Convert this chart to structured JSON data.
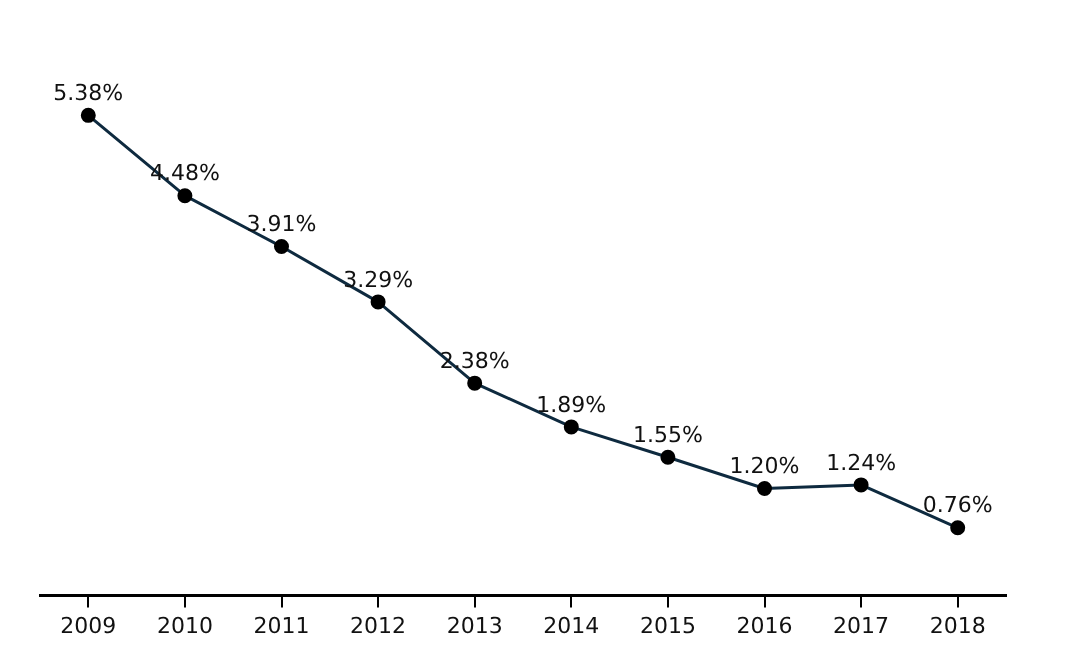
{
  "chart_data": {
    "type": "line",
    "categories": [
      "2009",
      "2010",
      "2011",
      "2012",
      "2013",
      "2014",
      "2015",
      "2016",
      "2017",
      "2018"
    ],
    "values": [
      5.38,
      4.48,
      3.91,
      3.29,
      2.38,
      1.89,
      1.55,
      1.2,
      1.24,
      0.76
    ],
    "value_labels": [
      "5.38%",
      "4.48%",
      "3.91%",
      "3.29%",
      "2.38%",
      "1.89%",
      "1.55%",
      "1.20%",
      "1.24%",
      "0.76%"
    ],
    "color": "#0e2a3f",
    "marker": "circle",
    "line_style": "solid"
  }
}
